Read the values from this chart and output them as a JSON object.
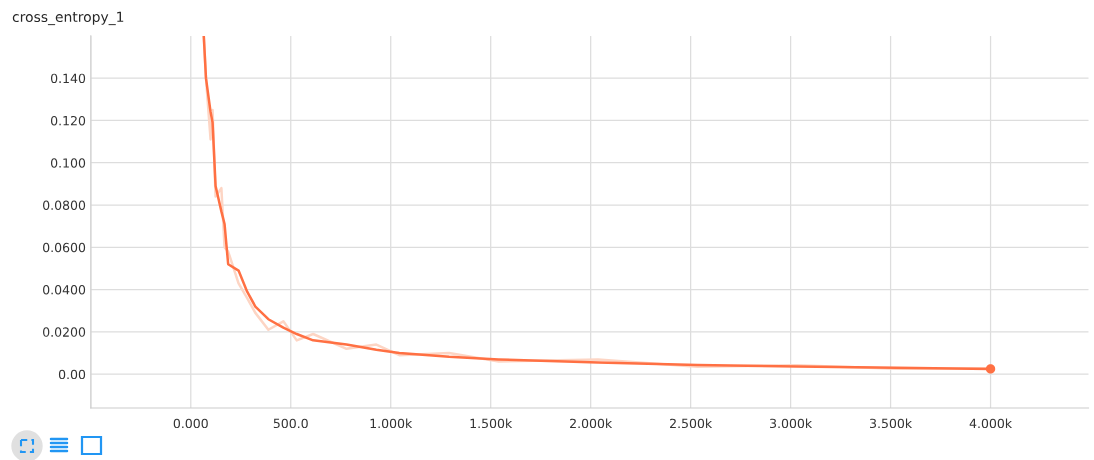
{
  "chart_data": {
    "type": "line",
    "title": "cross_entropy_1",
    "xlim": [
      -500,
      4490
    ],
    "ylim": [
      -0.016,
      0.16
    ],
    "xticks": [
      {
        "value": -500,
        "label": null
      },
      {
        "value": 0,
        "label": "0.000"
      },
      {
        "value": 500,
        "label": "500.0"
      },
      {
        "value": 1000,
        "label": "1.000k"
      },
      {
        "value": 1500,
        "label": "1.500k"
      },
      {
        "value": 2000,
        "label": "2.000k"
      },
      {
        "value": 2500,
        "label": "2.500k"
      },
      {
        "value": 3000,
        "label": "3.000k"
      },
      {
        "value": 3500,
        "label": "3.500k"
      },
      {
        "value": 4000,
        "label": "4.000k"
      }
    ],
    "yticks": [
      {
        "value": 0,
        "label": "0.00"
      },
      {
        "value": 0.02,
        "label": "0.0200"
      },
      {
        "value": 0.04,
        "label": "0.0400"
      },
      {
        "value": 0.06,
        "label": "0.0600"
      },
      {
        "value": 0.08,
        "label": "0.0800"
      },
      {
        "value": 0.1,
        "label": "0.100"
      },
      {
        "value": 0.12,
        "label": "0.120"
      },
      {
        "value": 0.14,
        "label": "0.140"
      }
    ],
    "grid": true,
    "legend": false,
    "line_style": "solid",
    "series": [
      {
        "color": "#fdd5c4",
        "marker": "none",
        "x": [
          65,
          76,
          99,
          109,
          124,
          153,
          169,
          187,
          239,
          282,
          323,
          388,
          463,
          530,
          612,
          779,
          928,
          1043,
          1292,
          1540,
          2037,
          2534,
          3031,
          3528,
          4000
        ],
        "values": [
          0.16,
          0.14,
          0.111,
          0.125,
          0.084,
          0.088,
          0.06,
          0.058,
          0.043,
          0.036,
          0.029,
          0.021,
          0.025,
          0.016,
          0.019,
          0.012,
          0.014,
          0.009,
          0.01,
          0.006,
          0.007,
          0.0035,
          0.0042,
          0.0026,
          0.0028
        ]
      },
      {
        "color": "#ff7043",
        "marker": "none",
        "x": [
          65,
          76,
          99,
          109,
          124,
          153,
          169,
          187,
          239,
          282,
          323,
          388,
          463,
          530,
          612,
          779,
          928,
          1043,
          1292,
          1540,
          2037,
          2534,
          3031,
          3528,
          4000
        ],
        "values": [
          0.16,
          0.14,
          0.124,
          0.119,
          0.089,
          0.077,
          0.071,
          0.052,
          0.049,
          0.039,
          0.032,
          0.026,
          0.022,
          0.019,
          0.016,
          0.014,
          0.0116,
          0.01,
          0.0082,
          0.007,
          0.0055,
          0.0043,
          0.0036,
          0.003,
          0.0025
        ]
      },
      {
        "type": "scatter",
        "color": "#ff7043",
        "marker": "circle",
        "x": [
          4000
        ],
        "values": [
          0.0025
        ]
      }
    ]
  }
}
